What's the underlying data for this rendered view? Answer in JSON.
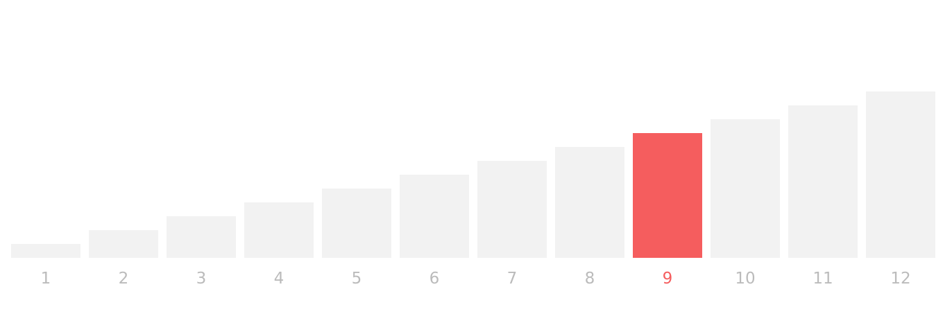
{
  "colors": {
    "bar": "#f2f2f2",
    "bar_selected": "#f55d5e",
    "label": "#bbbbbb",
    "label_selected": "#f55d5e",
    "background": "#ffffff"
  },
  "chart_data": {
    "type": "bar",
    "categories": [
      "1",
      "2",
      "3",
      "4",
      "5",
      "6",
      "7",
      "8",
      "9",
      "10",
      "11",
      "12"
    ],
    "values": [
      1,
      2,
      3,
      4,
      5,
      6,
      7,
      8,
      9,
      10,
      11,
      12
    ],
    "selected": "9",
    "ylim": [
      0,
      12
    ],
    "grid": false,
    "legend": "none",
    "title": "",
    "xlabel": "",
    "ylabel": ""
  }
}
